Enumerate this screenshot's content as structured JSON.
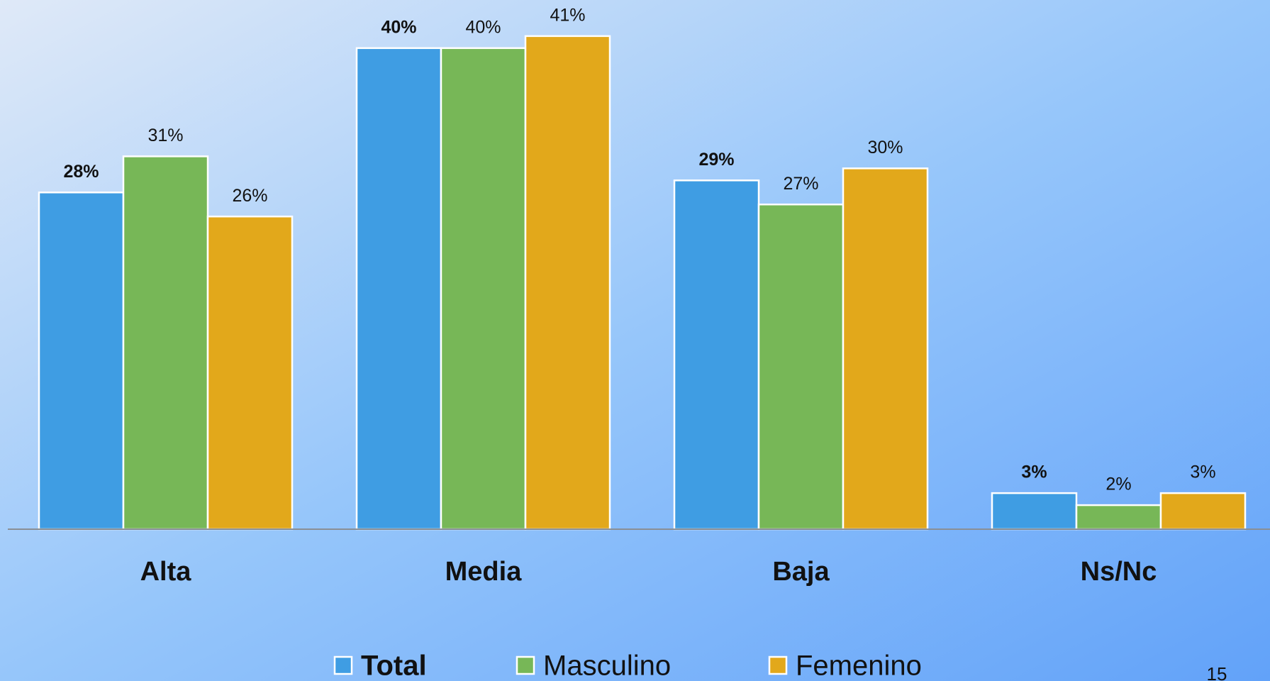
{
  "chart_data": {
    "type": "bar",
    "categories": [
      "Alta",
      "Media",
      "Baja",
      "Ns/Nc"
    ],
    "series": [
      {
        "name": "Total",
        "color": "#3f9de3",
        "bold": true,
        "values": [
          28,
          40,
          29,
          3
        ],
        "value_labels": [
          "28%",
          "40%",
          "29%",
          "3%"
        ]
      },
      {
        "name": "Masculino",
        "color": "#77b757",
        "bold": false,
        "values": [
          31,
          40,
          27,
          2
        ],
        "value_labels": [
          "31%",
          "40%",
          "27%",
          "2%"
        ]
      },
      {
        "name": "Femenino",
        "color": "#e2a81b",
        "bold": false,
        "values": [
          26,
          41,
          30,
          3
        ],
        "value_labels": [
          "26%",
          "41%",
          "30%",
          "3%"
        ]
      }
    ],
    "ylim": [
      0,
      44
    ],
    "legend": "bottom",
    "page_number": "15"
  }
}
